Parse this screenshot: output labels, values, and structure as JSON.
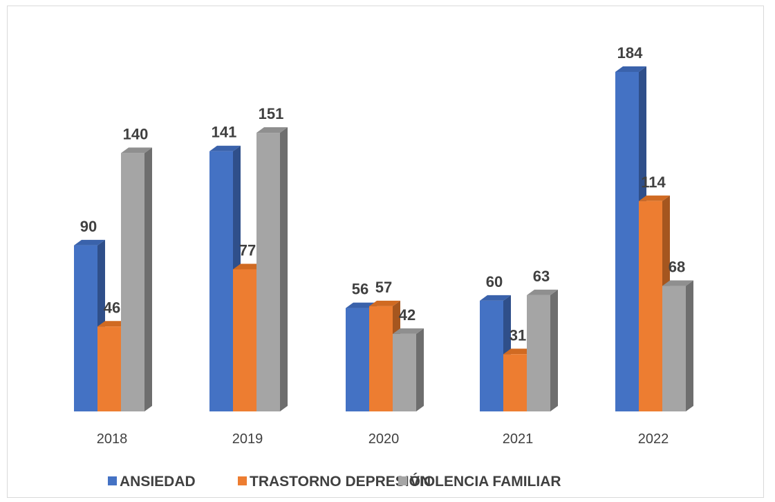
{
  "chart_data": {
    "type": "bar",
    "categories": [
      "2018",
      "2019",
      "2020",
      "2021",
      "2022"
    ],
    "series": [
      {
        "name": "ANSIEDAD",
        "values": [
          90,
          141,
          56,
          60,
          184
        ],
        "color": "#4472c4",
        "side_color": "#2f4f8a",
        "top_color": "#3a62ab"
      },
      {
        "name": "TRASTORNO DEPRESIÓN",
        "values": [
          46,
          77,
          57,
          31,
          114
        ],
        "color": "#ed7d31",
        "side_color": "#a5561f",
        "top_color": "#d06a22"
      },
      {
        "name": "VIOLENCIA FAMILIAR",
        "values": [
          140,
          151,
          42,
          63,
          68
        ],
        "color": "#a5a5a5",
        "side_color": "#6e6e6e",
        "top_color": "#8f8f8f"
      }
    ],
    "ylim": [
      0,
      184
    ],
    "grid": false,
    "legend": "bottom",
    "data_labels": true
  }
}
